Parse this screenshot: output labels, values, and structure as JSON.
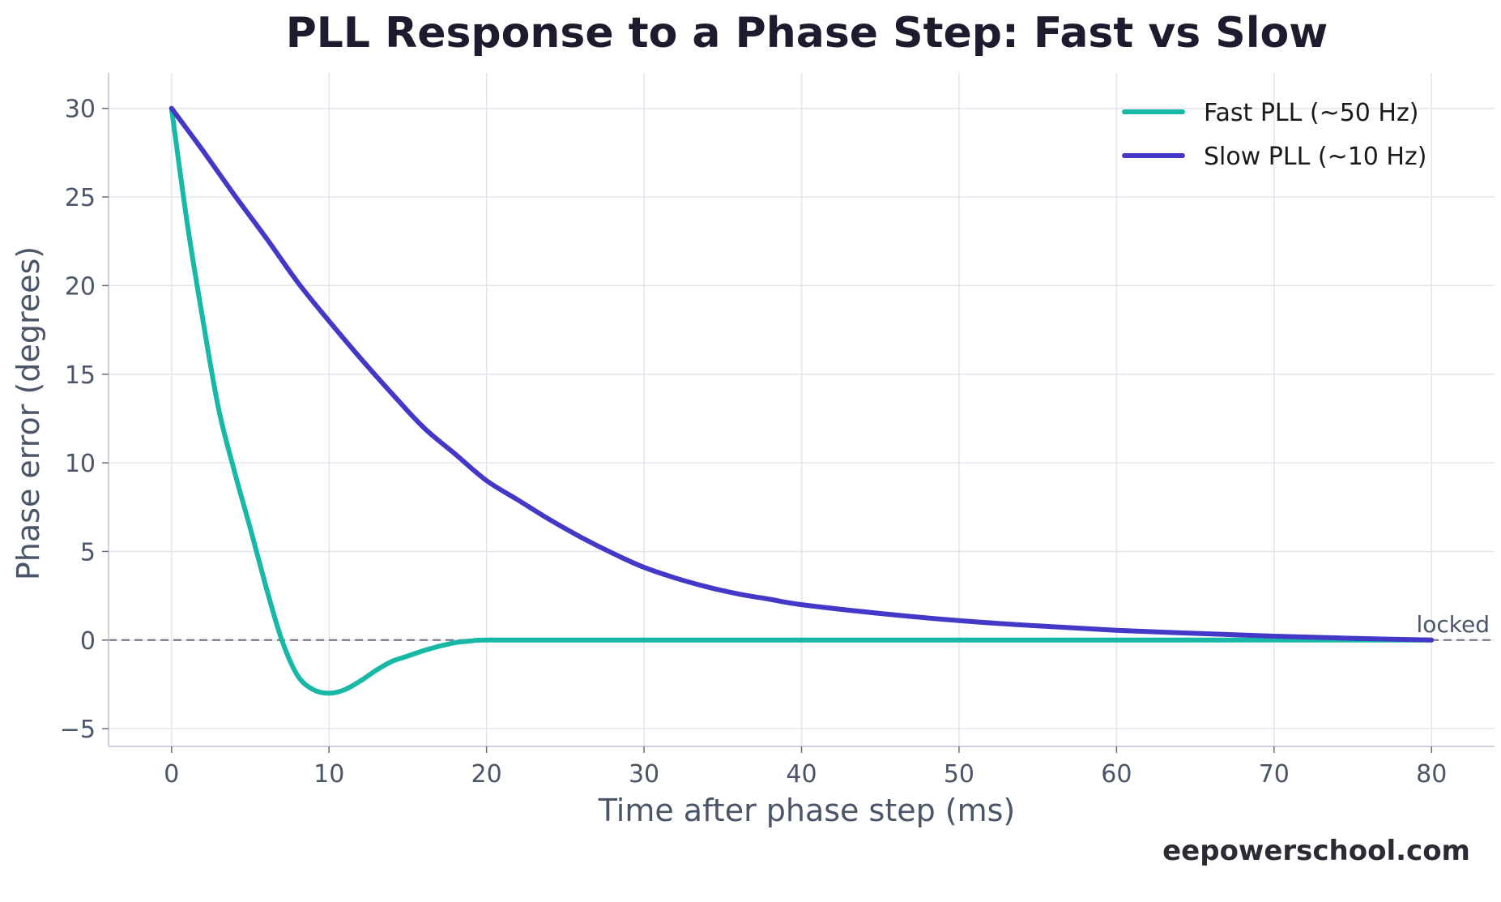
{
  "chart_data": {
    "type": "line",
    "title": "PLL Response to a Phase Step: Fast vs Slow",
    "xlabel": "Time after phase step (ms)",
    "ylabel": "Phase error (degrees)",
    "xlim": [
      -4,
      84
    ],
    "ylim": [
      -6,
      32
    ],
    "xticks": [
      0,
      10,
      20,
      30,
      40,
      50,
      60,
      70,
      80
    ],
    "yticks": [
      -5,
      0,
      5,
      10,
      15,
      20,
      25,
      30
    ],
    "xtick_labels": [
      "0",
      "10",
      "20",
      "30",
      "40",
      "50",
      "60",
      "70",
      "80"
    ],
    "ytick_labels": [
      "−5",
      "0",
      "5",
      "10",
      "15",
      "20",
      "25",
      "30"
    ],
    "grid": true,
    "legend_position": "top-right",
    "series": [
      {
        "name": "Fast PLL (~50 Hz)",
        "color": "#17b8a6",
        "x": [
          0,
          1,
          2,
          3,
          4,
          5,
          6,
          7,
          8,
          9,
          10,
          11,
          12,
          13,
          14,
          15,
          16,
          17,
          18,
          19,
          20,
          25,
          30,
          35,
          40,
          45,
          50,
          55,
          60,
          65,
          70,
          75,
          80
        ],
        "y": [
          30,
          23.5,
          18,
          13,
          9.5,
          6.3,
          3,
          0,
          -2,
          -2.8,
          -3,
          -2.8,
          -2.3,
          -1.7,
          -1.2,
          -0.9,
          -0.6,
          -0.35,
          -0.15,
          -0.05,
          0,
          0,
          0,
          0,
          0,
          0,
          0,
          0,
          0,
          0,
          0,
          0,
          0
        ]
      },
      {
        "name": "Slow PLL (~10 Hz)",
        "color": "#4338c8",
        "x": [
          0,
          2,
          4,
          6,
          8,
          10,
          12,
          14,
          16,
          18,
          20,
          22,
          24,
          26,
          28,
          30,
          32,
          34,
          36,
          38,
          40,
          45,
          50,
          55,
          60,
          65,
          70,
          75,
          80
        ],
        "y": [
          30,
          27.6,
          25.1,
          22.7,
          20.2,
          18,
          15.9,
          13.9,
          12,
          10.5,
          9,
          7.9,
          6.8,
          5.8,
          4.9,
          4.1,
          3.5,
          3,
          2.6,
          2.3,
          2,
          1.5,
          1.1,
          0.8,
          0.55,
          0.38,
          0.22,
          0.1,
          0
        ]
      }
    ],
    "reference_line": {
      "y": 0,
      "style": "dashed",
      "color": "#6b6b80",
      "label": "locked"
    }
  },
  "footer": {
    "watermark": "eepowerschool.com"
  }
}
